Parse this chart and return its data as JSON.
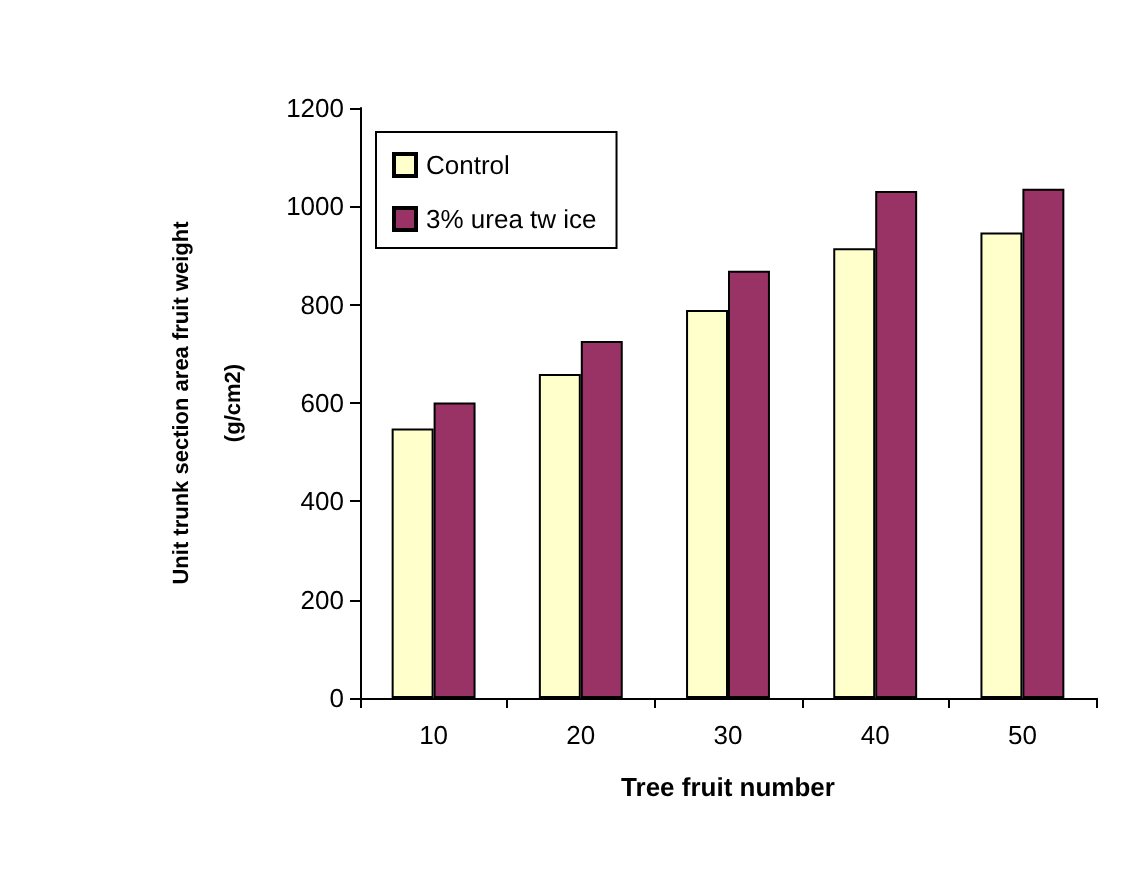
{
  "chart_data": {
    "type": "bar",
    "xlabel": "Tree fruit number",
    "ylabel": "Unit trunk section area fruit weight\n(g/cm2)",
    "categories": [
      "10",
      "20",
      "30",
      "40",
      "50"
    ],
    "series": [
      {
        "name": "Control",
        "color": "#ffffcc",
        "values": [
          548,
          659,
          789,
          915,
          947
        ]
      },
      {
        "name": "3% urea tw ice",
        "color": "#993366",
        "values": [
          601,
          726,
          869,
          1031,
          1036
        ]
      }
    ],
    "ylim": [
      0,
      1200
    ],
    "yticks": [
      0,
      200,
      400,
      600,
      800,
      1000,
      1200
    ],
    "grid": false,
    "legend": "top left"
  }
}
